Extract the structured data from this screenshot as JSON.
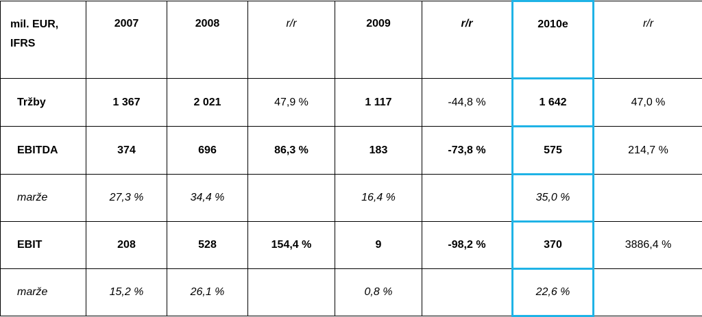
{
  "header": {
    "corner": "mil. EUR, IFRS",
    "corner_line1": "mil. EUR,",
    "corner_line2": "IFRS",
    "columns": [
      "2007",
      "2008",
      "r/r",
      "2009",
      "r/r",
      "2010e",
      "r/r"
    ]
  },
  "rows": [
    {
      "label": "Tržby",
      "values": [
        "1 367",
        "2 021",
        "47,9 %",
        "1 117",
        "-44,8 %",
        "1 642",
        "47,0 %"
      ]
    },
    {
      "label": "EBITDA",
      "values": [
        "374",
        "696",
        "86,3 %",
        "183",
        "-73,8 %",
        "575",
        "214,7 %"
      ]
    },
    {
      "label": "marže",
      "values": [
        "27,3 %",
        "34,4 %",
        "",
        "16,4 %",
        "",
        "35,0 %",
        ""
      ]
    },
    {
      "label": "EBIT",
      "values": [
        "208",
        "528",
        "154,4 %",
        "9",
        "-98,2 %",
        "370",
        "3886,4 %"
      ]
    },
    {
      "label": "marže",
      "values": [
        "15,2 %",
        "26,1 %",
        "",
        "0,8 %",
        "",
        "22,6 %",
        ""
      ]
    }
  ],
  "highlight_color": "#1fb3e6"
}
